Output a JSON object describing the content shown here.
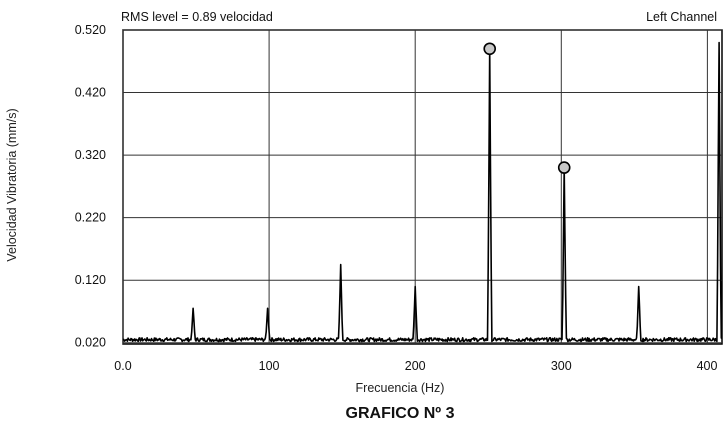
{
  "chart_data": {
    "type": "line",
    "caption": "GRAFICO Nº 3",
    "annotation_left": "RMS level = 0.89 velocidad",
    "annotation_right": "Left Channel",
    "xlabel": "Frecuencia (Hz)",
    "ylabel": "Velocidad Vibratoria (mm/s)",
    "xlim": [
      0,
      410
    ],
    "ylim": [
      0.018,
      0.52
    ],
    "x_ticks": [
      "0.0",
      "100",
      "200",
      "300",
      "400"
    ],
    "x_tick_values": [
      0,
      100,
      200,
      300,
      400
    ],
    "y_ticks": [
      "0.520",
      "0.420",
      "0.320",
      "0.220",
      "0.120",
      "0.020"
    ],
    "y_tick_values": [
      0.52,
      0.42,
      0.32,
      0.22,
      0.12,
      0.02
    ],
    "grid": true,
    "line_color": "#000000",
    "noise_floor": 0.025,
    "peaks": [
      {
        "x": 48,
        "y": 0.075
      },
      {
        "x": 99,
        "y": 0.075
      },
      {
        "x": 149,
        "y": 0.145
      },
      {
        "x": 200,
        "y": 0.11
      },
      {
        "x": 251,
        "y": 0.49
      },
      {
        "x": 302,
        "y": 0.3
      },
      {
        "x": 353,
        "y": 0.11
      },
      {
        "x": 408,
        "y": 0.5
      }
    ],
    "markers": [
      {
        "x": 251,
        "y": 0.49
      },
      {
        "x": 302,
        "y": 0.3
      }
    ]
  }
}
